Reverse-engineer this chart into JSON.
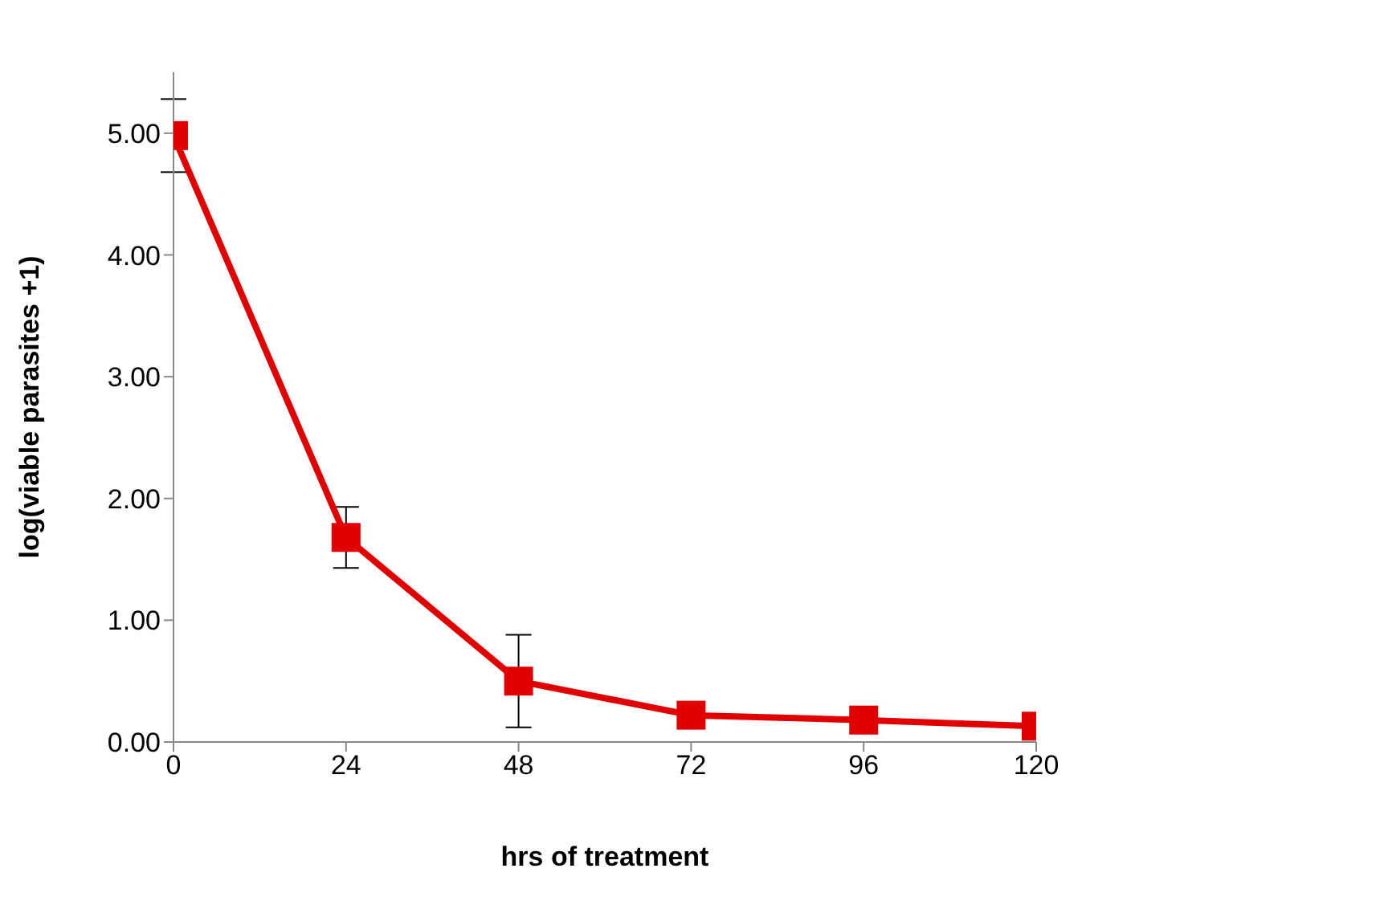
{
  "chart_data": {
    "type": "line",
    "xlabel": "hrs of treatment",
    "ylabel": "log(viable parasites +1)",
    "x": [
      0,
      24,
      48,
      72,
      96,
      120
    ],
    "series": [
      {
        "color": "#e00000",
        "values": [
          4.98,
          1.68,
          0.5,
          0.22,
          0.18,
          0.13
        ],
        "errors": [
          0.3,
          0.25,
          0.38,
          null,
          null,
          null
        ]
      }
    ],
    "xlim": [
      0,
      120
    ],
    "xticks": [
      0,
      24,
      48,
      72,
      96,
      120
    ],
    "ylim": [
      0,
      5.5
    ],
    "yticks": [
      {
        "value": 0,
        "label": "0.00"
      },
      {
        "value": 1,
        "label": "1.00"
      },
      {
        "value": 2,
        "label": "2.00"
      },
      {
        "value": 3,
        "label": "3.00"
      },
      {
        "value": 4,
        "label": "4.00"
      },
      {
        "value": 5,
        "label": "5.00"
      }
    ],
    "marker": "square",
    "line_style": "solid",
    "grid": false,
    "legend": false
  }
}
